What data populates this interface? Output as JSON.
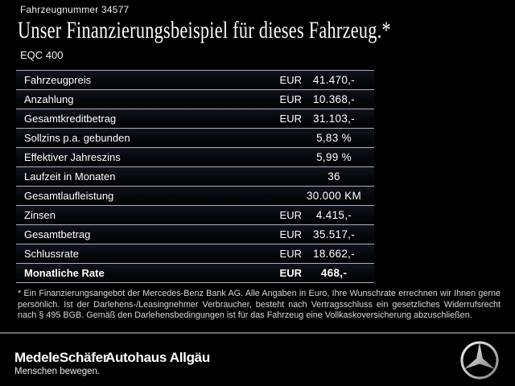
{
  "header": {
    "vehicle_number": "Fahrzeugnummer 34577",
    "title": "Unser Finanzierungsbeispiel für dieses Fahrzeug.*",
    "model": "EQC 400"
  },
  "table": {
    "rows": [
      {
        "label": "Fahrzeugpreis",
        "currency": "EUR",
        "value": "41.470,-",
        "bold": false
      },
      {
        "label": "Anzahlung",
        "currency": "EUR",
        "value": "10.368,-",
        "bold": false
      },
      {
        "label": "Gesamtkreditbetrag",
        "currency": "EUR",
        "value": "31.103,-",
        "bold": false
      },
      {
        "label": "Sollzins p.a. gebunden",
        "currency": "",
        "value": "5,83 %",
        "bold": false
      },
      {
        "label": "Effektiver Jahreszins",
        "currency": "",
        "value": "5,99 %",
        "bold": false
      },
      {
        "label": "Laufzeit in Monaten",
        "currency": "",
        "value": "36",
        "bold": false
      },
      {
        "label": "Gesamtlaufleistung",
        "currency": "",
        "value": "30.000 KM",
        "bold": false
      },
      {
        "label": "Zinsen",
        "currency": "EUR",
        "value": "4.415,-",
        "bold": false
      },
      {
        "label": "Gesamtbetrag",
        "currency": "EUR",
        "value": "35.517,-",
        "bold": false
      },
      {
        "label": "Schlussrate",
        "currency": "EUR",
        "value": "18.662,-",
        "bold": false
      },
      {
        "label": "Monatliche Rate",
        "currency": "EUR",
        "value": "468,-",
        "bold": true
      }
    ]
  },
  "footnote": {
    "text": "* Ein Finanzierungsangebot der Mercedes-Benz Bank AG. Alle Angaben in Euro, Ihre Wunschrate errechnen wir Ihnen gerne persönlich. Ist der Darlehens-/Leasingnehmer Verbraucher, besteht nach Vertragsschluss ein gesetzliches Widerrufsrecht nach § 495 BGB. Gemäß den Darlehensbedingungen ist für das Fahrzeug eine Vollkaskoversicherung abzuschließen."
  },
  "footer": {
    "dealer_name": "MedeleSchäfer",
    "dealer_secondary": "Autohaus Allgäu",
    "dealer_tagline": "Menschen bewegen.",
    "brand_icon": "mercedes-star-icon"
  },
  "colors": {
    "background": "#000000",
    "text": "#ffffff",
    "table_line": "#a9b1be",
    "footer_divider": "#6e6e6e",
    "footnote_text": "#dadada",
    "star_silver": "#c8c8c8"
  }
}
